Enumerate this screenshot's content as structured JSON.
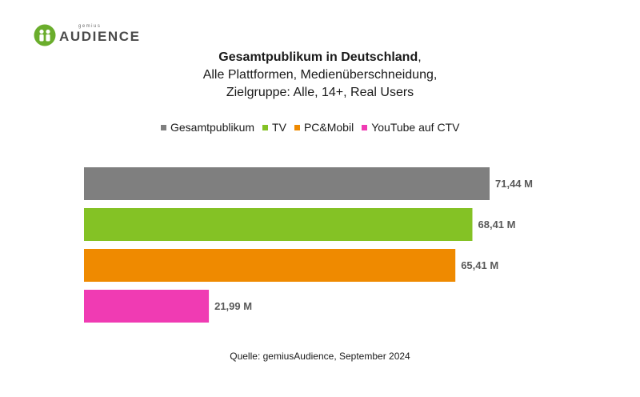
{
  "logo": {
    "top": "gemius",
    "main": "AUDIENCE"
  },
  "title": {
    "bold": "Gesamtpublikum in Deutschland",
    "bold_suffix": ",",
    "line2": "Alle Plattformen, Medienüberschneidung,",
    "line3": "Zielgruppe: Alle, 14+, Real Users"
  },
  "source": "Quelle: gemiusAudience, September 2024",
  "colors": {
    "Gesamtpublikum": "#7f7f7f",
    "TV": "#84c225",
    "PC&Mobil": "#ef8a00",
    "YouTube auf CTV": "#f03bb3",
    "logo_green": "#6aad2c"
  },
  "chart_data": {
    "type": "bar",
    "orientation": "horizontal",
    "categories": [
      "Gesamtpublikum",
      "TV",
      "PC&Mobil",
      "YouTube auf CTV"
    ],
    "values": [
      71.44,
      68.41,
      65.41,
      21.99
    ],
    "value_labels": [
      "71,44 M",
      "68,41 M",
      "65,41 M",
      "21,99 M"
    ],
    "unit": "M",
    "legend": [
      "Gesamtpublikum",
      "TV",
      "PC&Mobil",
      "YouTube auf CTV"
    ],
    "legend_position": "top",
    "grid": false,
    "xlim": [
      0,
      71.44
    ]
  }
}
